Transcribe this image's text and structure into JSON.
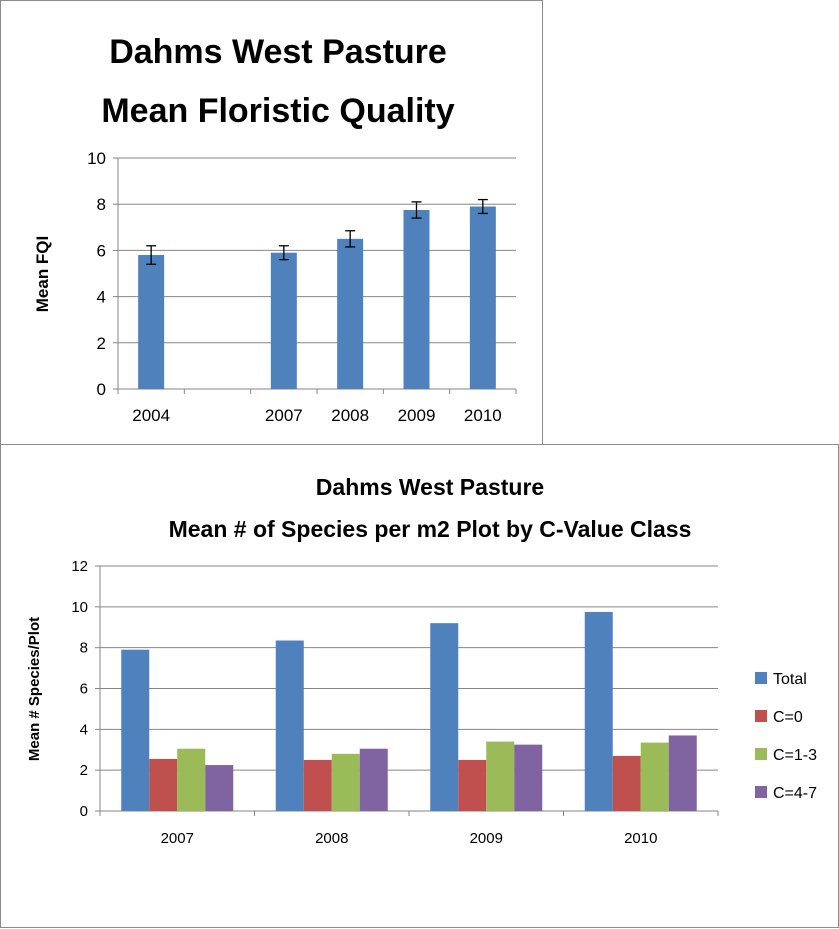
{
  "chart_data": [
    {
      "type": "bar",
      "title_lines": [
        "Dahms West Pasture",
        "Mean Floristic Quality"
      ],
      "xlabel": "",
      "ylabel": "Mean FQI",
      "ylim": [
        0,
        10
      ],
      "yticks": [
        0,
        2,
        4,
        6,
        8,
        10
      ],
      "grid": true,
      "legend": "none",
      "categories": [
        "2004",
        "",
        "2007",
        "2008",
        "2009",
        "2010"
      ],
      "values": [
        5.8,
        null,
        5.9,
        6.5,
        7.75,
        7.9
      ],
      "error": [
        0.4,
        null,
        0.3,
        0.35,
        0.35,
        0.3
      ],
      "color": "#4f81bd"
    },
    {
      "type": "bar",
      "title_lines": [
        "Dahms West Pasture",
        "Mean # of Species per m2 Plot by C-Value Class"
      ],
      "xlabel": "",
      "ylabel": "Mean # Species/Plot",
      "ylim": [
        0,
        12
      ],
      "yticks": [
        0,
        2,
        4,
        6,
        8,
        10,
        12
      ],
      "grid": true,
      "legend": "right",
      "categories": [
        "2007",
        "2008",
        "2009",
        "2010"
      ],
      "series": [
        {
          "name": "Total",
          "color": "#4f81bd",
          "values": [
            7.9,
            8.35,
            9.2,
            9.75
          ]
        },
        {
          "name": "C=0",
          "color": "#c0504d",
          "values": [
            2.55,
            2.5,
            2.5,
            2.7
          ]
        },
        {
          "name": "C=1-3",
          "color": "#9bbb59",
          "values": [
            3.05,
            2.8,
            3.4,
            3.35
          ]
        },
        {
          "name": "C=4-7",
          "color": "#8064a2",
          "values": [
            2.25,
            3.05,
            3.25,
            3.7
          ]
        }
      ]
    }
  ]
}
